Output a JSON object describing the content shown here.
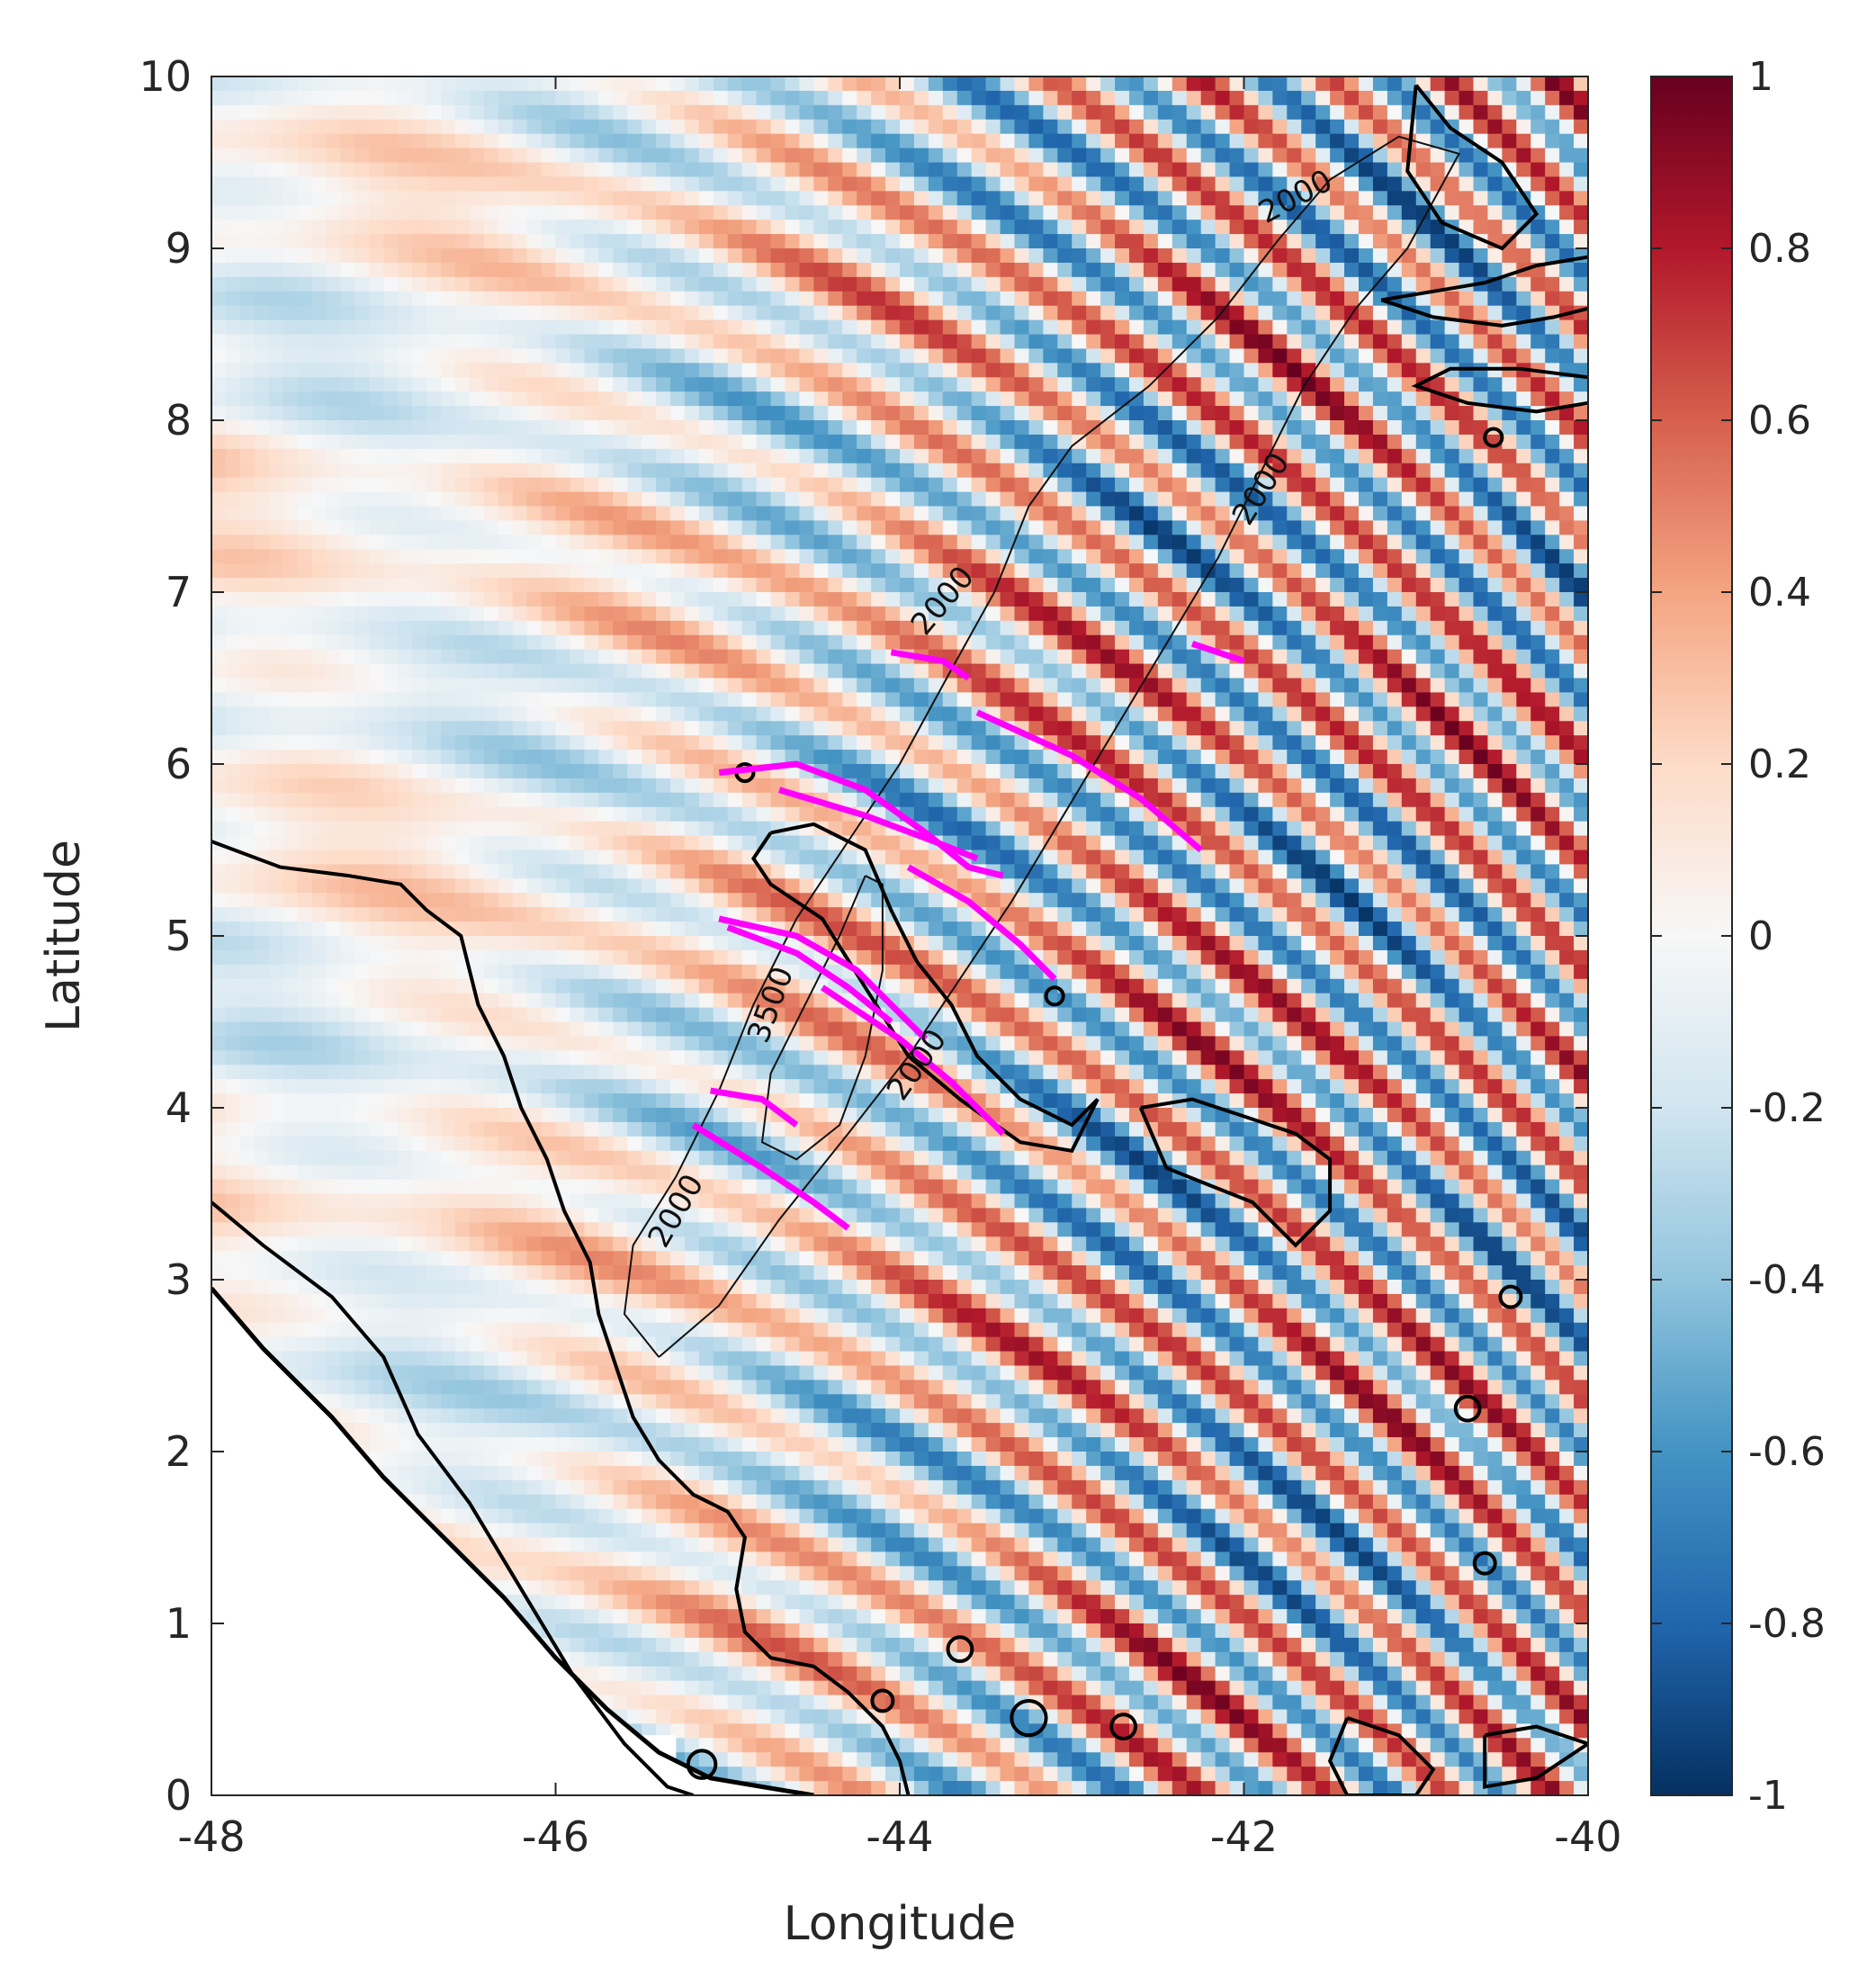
{
  "chart_data": {
    "type": "heatmap",
    "title": "",
    "xlabel": "Longitude",
    "ylabel": "Latitude",
    "xlim": [
      -48,
      -40
    ],
    "ylim": [
      0,
      10
    ],
    "x_ticks": [
      -48,
      -46,
      -44,
      -42,
      -40
    ],
    "x_tick_labels": [
      "-48",
      "-46",
      "-44",
      "-42",
      "-40"
    ],
    "y_ticks": [
      0,
      1,
      2,
      3,
      4,
      5,
      6,
      7,
      8,
      9,
      10
    ],
    "y_tick_labels": [
      "0",
      "1",
      "2",
      "3",
      "4",
      "5",
      "6",
      "7",
      "8",
      "9",
      "10"
    ],
    "colorbar": {
      "colormap": "red-white-blue diverging",
      "clim": [
        -1,
        1
      ],
      "ticks": [
        1,
        0.8,
        0.6,
        0.4,
        0.2,
        0,
        -0.2,
        -0.4,
        -0.6,
        -0.8,
        -1
      ],
      "tick_labels": [
        "1",
        "0.8",
        "0.6",
        "0.4",
        "0.2",
        "0",
        "-0.2",
        "-0.4",
        "-0.6",
        "-0.8",
        "-1"
      ]
    },
    "field_pattern": {
      "description_values": "oblique wave bands with values between -1 and 1, oriented roughly NW-SE",
      "band_angle_deg": -28,
      "band_wavelength_deg": 0.55
    },
    "contour_labels": [
      {
        "text": "2000",
        "lon": -41.7,
        "lat": 9.3,
        "rotation": -28
      },
      {
        "text": "2000",
        "lon": -41.9,
        "lat": 7.6,
        "rotation": -58
      },
      {
        "text": "2000",
        "lon": -43.75,
        "lat": 6.95,
        "rotation": -50
      },
      {
        "text": "3500",
        "lon": -44.75,
        "lat": 4.6,
        "rotation": -70
      },
      {
        "text": "2000",
        "lon": -43.9,
        "lat": 4.25,
        "rotation": -55
      },
      {
        "text": "2000",
        "lon": -45.3,
        "lat": 3.4,
        "rotation": -60
      }
    ],
    "bathymetry_2000": [
      [
        -45.4,
        2.55
      ],
      [
        -45.6,
        2.8
      ],
      [
        -45.55,
        3.2
      ],
      [
        -45.3,
        3.6
      ],
      [
        -45.05,
        4.1
      ],
      [
        -44.85,
        4.6
      ],
      [
        -44.6,
        5.1
      ],
      [
        -44.3,
        5.55
      ],
      [
        -44.0,
        6.0
      ],
      [
        -43.7,
        6.55
      ],
      [
        -43.45,
        7.0
      ],
      [
        -43.25,
        7.5
      ],
      [
        -43.0,
        7.85
      ],
      [
        -42.55,
        8.2
      ],
      [
        -42.15,
        8.6
      ],
      [
        -41.8,
        9.05
      ],
      [
        -41.5,
        9.4
      ],
      [
        -41.1,
        9.65
      ],
      [
        -40.75,
        9.55
      ],
      [
        -41.05,
        9.0
      ],
      [
        -41.35,
        8.65
      ],
      [
        -41.65,
        8.2
      ],
      [
        -41.9,
        7.7
      ],
      [
        -42.15,
        7.2
      ],
      [
        -42.45,
        6.7
      ],
      [
        -42.75,
        6.2
      ],
      [
        -43.05,
        5.7
      ],
      [
        -43.35,
        5.2
      ],
      [
        -43.65,
        4.75
      ],
      [
        -43.95,
        4.3
      ],
      [
        -44.3,
        3.85
      ],
      [
        -44.7,
        3.35
      ],
      [
        -45.05,
        2.85
      ],
      [
        -45.4,
        2.55
      ]
    ],
    "bathymetry_3500": [
      [
        -44.2,
        5.35
      ],
      [
        -44.35,
        5.0
      ],
      [
        -44.55,
        4.6
      ],
      [
        -44.75,
        4.2
      ],
      [
        -44.8,
        3.8
      ],
      [
        -44.6,
        3.7
      ],
      [
        -44.35,
        3.9
      ],
      [
        -44.2,
        4.3
      ],
      [
        -44.1,
        4.8
      ],
      [
        -44.1,
        5.3
      ],
      [
        -44.2,
        5.35
      ]
    ],
    "coastline_main": [
      [
        -48.0,
        5.55
      ],
      [
        -47.6,
        5.4
      ],
      [
        -47.2,
        5.35
      ],
      [
        -46.9,
        5.3
      ],
      [
        -46.75,
        5.15
      ],
      [
        -46.55,
        5.0
      ],
      [
        -46.45,
        4.6
      ],
      [
        -46.3,
        4.3
      ],
      [
        -46.2,
        4.0
      ],
      [
        -46.05,
        3.7
      ],
      [
        -45.95,
        3.4
      ],
      [
        -45.8,
        3.1
      ],
      [
        -45.75,
        2.8
      ],
      [
        -45.65,
        2.5
      ],
      [
        -45.55,
        2.2
      ],
      [
        -45.4,
        1.95
      ],
      [
        -45.2,
        1.75
      ],
      [
        -45.0,
        1.65
      ],
      [
        -44.9,
        1.5
      ],
      [
        -44.95,
        1.2
      ],
      [
        -44.9,
        0.95
      ],
      [
        -44.75,
        0.8
      ],
      [
        -44.5,
        0.75
      ],
      [
        -44.3,
        0.6
      ],
      [
        -44.1,
        0.4
      ],
      [
        -44.0,
        0.2
      ],
      [
        -43.95,
        0.0
      ]
    ],
    "coastline_south": [
      [
        -48.0,
        3.45
      ],
      [
        -47.7,
        3.2
      ],
      [
        -47.3,
        2.9
      ],
      [
        -47.0,
        2.55
      ],
      [
        -46.8,
        2.1
      ],
      [
        -46.5,
        1.7
      ],
      [
        -46.2,
        1.2
      ],
      [
        -45.9,
        0.7
      ],
      [
        -45.6,
        0.3
      ],
      [
        -45.35,
        0.05
      ],
      [
        -45.2,
        0.0
      ]
    ],
    "coastline_shore": [
      [
        -48.0,
        2.95
      ],
      [
        -47.7,
        2.6
      ],
      [
        -47.3,
        2.2
      ],
      [
        -47.0,
        1.85
      ],
      [
        -46.7,
        1.55
      ],
      [
        -46.3,
        1.15
      ],
      [
        -46.0,
        0.8
      ],
      [
        -45.7,
        0.5
      ],
      [
        -45.4,
        0.25
      ],
      [
        -45.1,
        0.1
      ],
      [
        -44.8,
        0.05
      ],
      [
        -44.5,
        0.0
      ]
    ],
    "islands": [
      [
        [
          -44.75,
          5.6
        ],
        [
          -44.5,
          5.65
        ],
        [
          -44.2,
          5.5
        ],
        [
          -44.05,
          5.15
        ],
        [
          -43.9,
          4.85
        ],
        [
          -43.7,
          4.6
        ],
        [
          -43.55,
          4.3
        ],
        [
          -43.3,
          4.05
        ],
        [
          -43.0,
          3.9
        ],
        [
          -42.85,
          4.05
        ],
        [
          -43.0,
          3.75
        ],
        [
          -43.3,
          3.8
        ],
        [
          -43.65,
          4.05
        ],
        [
          -43.95,
          4.3
        ],
        [
          -44.2,
          4.7
        ],
        [
          -44.45,
          5.1
        ],
        [
          -44.75,
          5.3
        ],
        [
          -44.85,
          5.45
        ],
        [
          -44.75,
          5.6
        ]
      ],
      [
        [
          -42.6,
          4.0
        ],
        [
          -42.3,
          4.05
        ],
        [
          -42.0,
          3.95
        ],
        [
          -41.7,
          3.85
        ],
        [
          -41.5,
          3.7
        ],
        [
          -41.5,
          3.4
        ],
        [
          -41.7,
          3.2
        ],
        [
          -41.95,
          3.45
        ],
        [
          -42.2,
          3.55
        ],
        [
          -42.45,
          3.65
        ],
        [
          -42.6,
          4.0
        ]
      ],
      [
        [
          -41.0,
          9.95
        ],
        [
          -40.8,
          9.7
        ],
        [
          -40.5,
          9.5
        ],
        [
          -40.3,
          9.2
        ],
        [
          -40.5,
          9.0
        ],
        [
          -40.85,
          9.15
        ],
        [
          -41.05,
          9.45
        ],
        [
          -41.0,
          9.95
        ]
      ],
      [
        [
          -40.0,
          8.95
        ],
        [
          -40.3,
          8.9
        ],
        [
          -40.6,
          8.8
        ],
        [
          -40.9,
          8.75
        ],
        [
          -41.2,
          8.7
        ],
        [
          -40.9,
          8.6
        ],
        [
          -40.5,
          8.55
        ],
        [
          -40.2,
          8.6
        ],
        [
          -40.0,
          8.65
        ]
      ],
      [
        [
          -40.0,
          8.25
        ],
        [
          -40.4,
          8.3
        ],
        [
          -40.8,
          8.3
        ],
        [
          -41.0,
          8.2
        ],
        [
          -40.7,
          8.1
        ],
        [
          -40.3,
          8.05
        ],
        [
          -40.0,
          8.1
        ]
      ],
      [
        [
          -41.4,
          0.45
        ],
        [
          -41.1,
          0.35
        ],
        [
          -40.9,
          0.15
        ],
        [
          -41.0,
          0.0
        ],
        [
          -41.4,
          0.0
        ],
        [
          -41.5,
          0.2
        ],
        [
          -41.4,
          0.45
        ]
      ],
      [
        [
          -40.6,
          0.35
        ],
        [
          -40.3,
          0.4
        ],
        [
          -40.0,
          0.3
        ],
        [
          -40.3,
          0.1
        ],
        [
          -40.6,
          0.05
        ],
        [
          -40.6,
          0.35
        ]
      ]
    ],
    "small_islands": [
      {
        "lon": -44.9,
        "lat": 5.95,
        "r": 0.05
      },
      {
        "lon": -43.1,
        "lat": 4.65,
        "r": 0.05
      },
      {
        "lon": -40.45,
        "lat": 2.9,
        "r": 0.06
      },
      {
        "lon": -40.7,
        "lat": 2.25,
        "r": 0.07
      },
      {
        "lon": -40.6,
        "lat": 1.35,
        "r": 0.06
      },
      {
        "lon": -45.15,
        "lat": 0.18,
        "r": 0.08
      },
      {
        "lon": -43.25,
        "lat": 0.45,
        "r": 0.1
      },
      {
        "lon": -43.65,
        "lat": 0.85,
        "r": 0.07
      },
      {
        "lon": -42.7,
        "lat": 0.4,
        "r": 0.07
      },
      {
        "lon": -44.1,
        "lat": 0.55,
        "r": 0.06
      },
      {
        "lon": -40.55,
        "lat": 7.9,
        "r": 0.05
      }
    ],
    "magenta_segments": [
      [
        [
          -44.05,
          6.65
        ],
        [
          -43.75,
          6.6
        ],
        [
          -43.6,
          6.5
        ]
      ],
      [
        [
          -43.55,
          6.3
        ],
        [
          -43.0,
          6.05
        ],
        [
          -42.6,
          5.8
        ],
        [
          -42.25,
          5.5
        ]
      ],
      [
        [
          -42.3,
          6.7
        ],
        [
          -42.0,
          6.6
        ]
      ],
      [
        [
          -45.05,
          5.95
        ],
        [
          -44.6,
          6.0
        ],
        [
          -44.2,
          5.85
        ],
        [
          -43.85,
          5.6
        ],
        [
          -43.6,
          5.4
        ],
        [
          -43.4,
          5.35
        ]
      ],
      [
        [
          -44.7,
          5.85
        ],
        [
          -44.2,
          5.7
        ],
        [
          -43.8,
          5.55
        ],
        [
          -43.55,
          5.45
        ]
      ],
      [
        [
          -43.95,
          5.4
        ],
        [
          -43.6,
          5.2
        ],
        [
          -43.3,
          4.95
        ],
        [
          -43.1,
          4.75
        ]
      ],
      [
        [
          -45.05,
          5.1
        ],
        [
          -44.6,
          5.0
        ],
        [
          -44.25,
          4.8
        ],
        [
          -44.0,
          4.55
        ],
        [
          -43.85,
          4.4
        ]
      ],
      [
        [
          -45.0,
          5.05
        ],
        [
          -44.6,
          4.9
        ],
        [
          -44.3,
          4.7
        ],
        [
          -44.05,
          4.5
        ]
      ],
      [
        [
          -44.45,
          4.7
        ],
        [
          -44.0,
          4.4
        ],
        [
          -43.7,
          4.15
        ],
        [
          -43.4,
          3.85
        ]
      ],
      [
        [
          -45.1,
          4.1
        ],
        [
          -44.8,
          4.05
        ],
        [
          -44.6,
          3.9
        ]
      ],
      [
        [
          -45.2,
          3.9
        ],
        [
          -44.8,
          3.65
        ],
        [
          -44.5,
          3.45
        ],
        [
          -44.3,
          3.3
        ]
      ]
    ]
  }
}
